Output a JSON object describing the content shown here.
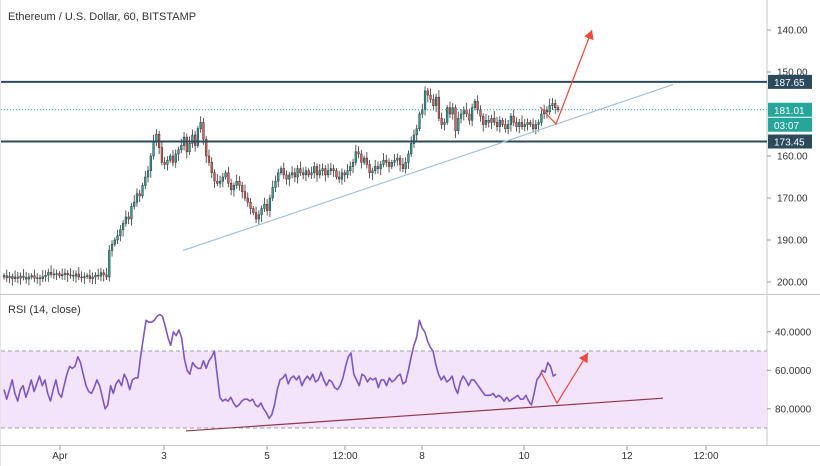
{
  "header": {
    "title": "Ethereum / U.S. Dollar, 60, BITSTAMP",
    "rsi_label": "RSI (14, close)"
  },
  "colors": {
    "up": "#26a69a",
    "down": "#ef5350",
    "candle_outline": "#333333",
    "level_line": "#2b4a5c",
    "trendline": "#a8c0d8",
    "arrow": "#f0483c",
    "rsi_line": "#7e57c2",
    "rsi_band": "#f3e3fb",
    "rsi_trend": "#8e3a4a",
    "price_tag": "#26a69a"
  },
  "price_axis": {
    "ticks": [
      "200.00",
      "190.00",
      "170.00",
      "160.00",
      "150.00",
      "140.00"
    ]
  },
  "rsi_axis": {
    "ticks": [
      "80.0000",
      "60.0000",
      "40.0000"
    ]
  },
  "time_axis": {
    "ticks": [
      "Apr",
      "3",
      "5",
      "12:00",
      "8",
      "10",
      "12",
      "12:00"
    ]
  },
  "price_labels": {
    "resistance": "187.65",
    "current": "181.01",
    "countdown": "03:07",
    "support": "173.45"
  },
  "chart_data": [
    {
      "type": "candlestick",
      "title": "Ethereum / U.S. Dollar, 60, BITSTAMP",
      "ylim": [
        137.5,
        211
      ],
      "y_ticks": [
        140,
        150,
        160,
        170,
        190,
        200
      ],
      "x_ticks": [
        "Apr",
        "3",
        "5",
        "12:00",
        "8",
        "10",
        "12",
        "12:00"
      ],
      "close_series": [
        141.5,
        141.0,
        141.3,
        140.8,
        141.2,
        140.9,
        141.4,
        141.1,
        140.7,
        141.2,
        141.5,
        140.9,
        141.0,
        140.8,
        141.3,
        141.6,
        142.3,
        141.8,
        141.9,
        142.0,
        141.5,
        141.8,
        142.1,
        141.7,
        141.6,
        141.4,
        141.9,
        141.2,
        141.0,
        141.3,
        141.5,
        140.8,
        141.2,
        141.6,
        141.4,
        142.2,
        141.7,
        141.2,
        147.5,
        149.0,
        150.0,
        151.0,
        152.5,
        154.0,
        155.5,
        155.0,
        158.0,
        159.0,
        161.0,
        160.5,
        163.0,
        165.0,
        166.5,
        170.0,
        173.5,
        175.2,
        172.0,
        168.5,
        168.0,
        169.0,
        170.0,
        168.5,
        170.5,
        171.5,
        172.5,
        174.5,
        171.0,
        173.0,
        175.0,
        172.5,
        176.5,
        178.0,
        174.0,
        170.0,
        168.5,
        166.0,
        164.0,
        163.5,
        164.0,
        165.0,
        166.0,
        163.5,
        162.0,
        163.0,
        164.0,
        163.0,
        161.5,
        160.0,
        159.0,
        157.5,
        156.5,
        155.0,
        156.0,
        157.5,
        158.5,
        157.0,
        160.0,
        162.5,
        164.0,
        166.0,
        167.0,
        165.5,
        164.5,
        165.5,
        166.0,
        165.0,
        167.0,
        166.0,
        165.5,
        166.5,
        165.5,
        166.0,
        167.5,
        165.5,
        166.5,
        167.0,
        165.5,
        166.5,
        167.0,
        166.5,
        165.0,
        164.5,
        166.0,
        165.5,
        166.5,
        167.5,
        168.5,
        171.0,
        170.5,
        168.5,
        169.5,
        168.0,
        166.0,
        166.5,
        167.5,
        167.0,
        168.0,
        169.0,
        168.5,
        167.5,
        168.5,
        169.0,
        169.5,
        168.0,
        167.0,
        168.5,
        170.5,
        173.0,
        175.0,
        176.5,
        180.0,
        181.0,
        185.5,
        184.5,
        183.5,
        182.0,
        184.0,
        179.0,
        177.5,
        178.0,
        181.5,
        180.0,
        181.5,
        176.0,
        179.0,
        180.0,
        181.0,
        180.0,
        178.5,
        181.5,
        183.0,
        181.0,
        179.5,
        177.5,
        178.5,
        178.0,
        179.0,
        178.0,
        177.0,
        178.5,
        177.5,
        176.5,
        177.5,
        179.5,
        178.0,
        177.0,
        178.0,
        177.0,
        177.5,
        178.0,
        177.5,
        176.5,
        177.5,
        178.0,
        180.0,
        181.0,
        180.5,
        182.0,
        182.5,
        181.5,
        181.0
      ],
      "levels": {
        "resistance": 187.65,
        "last": 181.01,
        "support": 173.45
      },
      "trendline": {
        "from": 147.5,
        "to": 187.0
      }
    },
    {
      "type": "line",
      "title": "RSI (14, close)",
      "ylim": [
        22,
        98
      ],
      "y_ticks": [
        40,
        60,
        80
      ],
      "bands": [
        30,
        70
      ],
      "values": [
        50,
        45,
        50,
        55,
        48,
        44,
        50,
        52,
        46,
        50,
        55,
        49,
        53,
        57,
        52,
        55,
        48,
        44,
        50,
        55,
        48,
        46,
        52,
        58,
        62,
        61,
        62,
        67,
        64,
        58,
        52,
        49,
        48,
        51,
        55,
        52,
        46,
        40,
        42,
        52,
        48,
        53,
        55,
        52,
        58,
        55,
        50,
        55,
        56,
        56,
        67,
        77,
        86,
        85,
        85,
        86,
        88,
        89,
        88,
        83,
        77,
        73,
        80,
        78,
        81,
        77,
        66,
        60,
        58,
        64,
        62,
        61,
        61,
        65,
        61,
        65,
        67,
        70,
        58,
        46,
        44,
        45,
        44,
        46,
        43,
        41,
        42,
        44,
        45,
        45,
        44,
        45,
        42,
        41,
        43,
        40,
        38,
        35,
        37,
        42,
        50,
        55,
        56,
        58,
        53,
        56,
        57,
        55,
        57,
        52,
        55,
        57,
        55,
        58,
        54,
        55,
        59,
        55,
        52,
        55,
        54,
        51,
        50,
        52,
        56,
        62,
        67,
        69,
        58,
        55,
        52,
        58,
        57,
        54,
        56,
        55,
        56,
        51,
        55,
        55,
        52,
        56,
        54,
        55,
        57,
        58,
        53,
        54,
        60,
        67,
        73,
        77,
        86,
        82,
        80,
        75,
        72,
        70,
        63,
        58,
        55,
        57,
        54,
        55,
        57,
        51,
        48,
        54,
        57,
        55,
        52,
        55,
        55,
        53,
        51,
        49,
        47,
        47,
        47,
        48,
        46,
        47,
        46,
        44,
        46,
        44,
        45,
        46,
        47,
        45,
        45,
        47,
        44,
        42,
        48,
        55,
        57,
        60,
        59,
        64,
        62,
        57,
        58
      ],
      "trendline": {
        "from": 28.5,
        "to": 45.5
      }
    }
  ]
}
